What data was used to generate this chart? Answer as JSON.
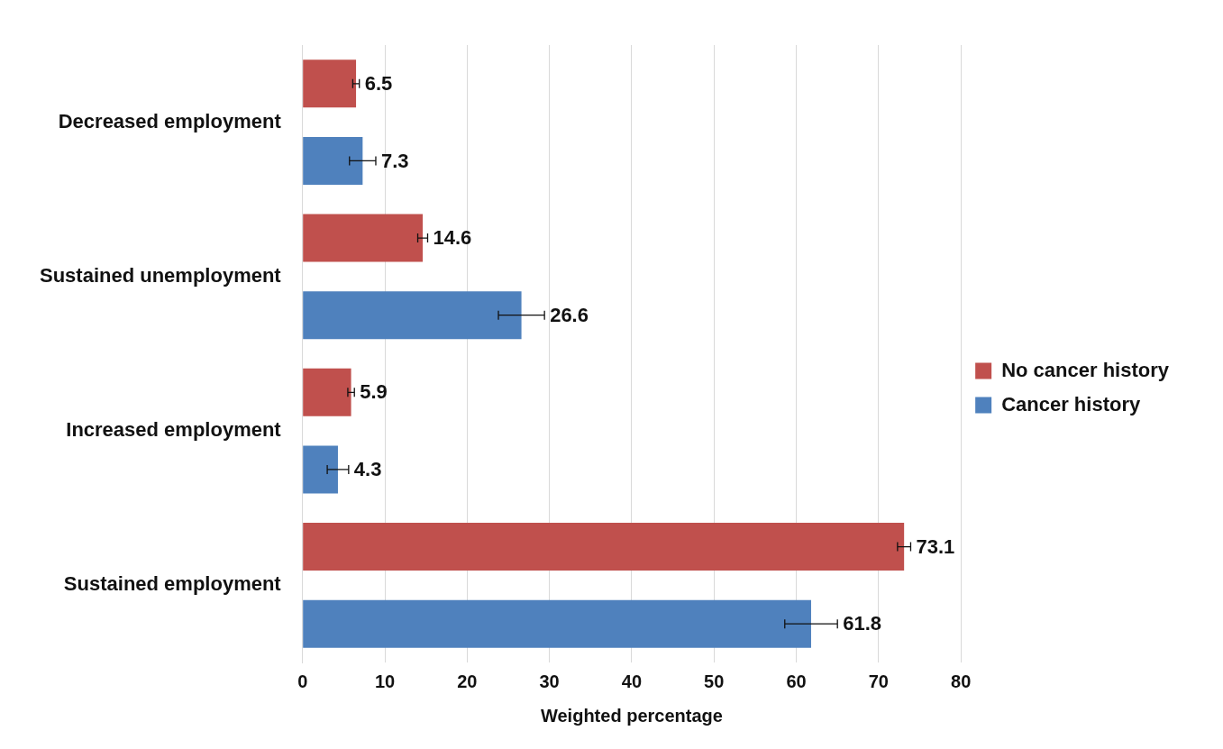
{
  "chart_data": {
    "type": "bar",
    "orientation": "horizontal",
    "xlabel": "Weighted percentage",
    "categories": [
      "Decreased employment",
      "Sustained unemployment",
      "Increased employment",
      "Sustained employment"
    ],
    "series": [
      {
        "name": "No cancer history",
        "color": "#c0504d",
        "values": [
          6.5,
          14.6,
          5.9,
          73.1
        ],
        "errors": [
          0.4,
          0.6,
          0.4,
          0.8
        ]
      },
      {
        "name": "Cancer history",
        "color": "#4f81bd",
        "values": [
          7.3,
          26.6,
          4.3,
          61.8
        ],
        "errors": [
          1.6,
          2.8,
          1.3,
          3.2
        ]
      }
    ],
    "xlim": [
      0,
      80
    ],
    "xticks": [
      0,
      10,
      20,
      30,
      40,
      50,
      60,
      70,
      80
    ],
    "grid": "x",
    "legend": "right",
    "data_labels": true
  }
}
